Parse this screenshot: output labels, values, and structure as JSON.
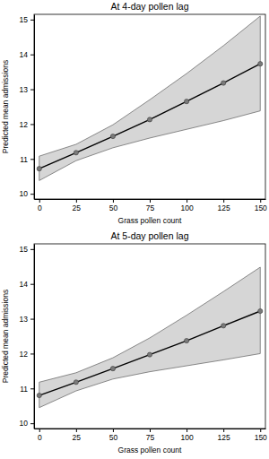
{
  "chart_data": [
    {
      "type": "line",
      "title": "At 4-day pollen lag",
      "x_label": "Grass pollen count",
      "y_label": "Predicted mean admissions",
      "x": [
        0,
        25,
        50,
        75,
        100,
        125,
        150
      ],
      "series": [
        {
          "values": [
            10.72,
            11.18,
            11.65,
            12.13,
            12.65,
            13.18,
            13.73
          ],
          "lower": [
            10.38,
            10.95,
            11.32,
            11.6,
            11.85,
            12.1,
            12.38
          ],
          "upper": [
            11.08,
            11.42,
            11.98,
            12.7,
            13.45,
            14.25,
            15.1
          ],
          "color": "#000000",
          "marker": "circle"
        }
      ],
      "xlim": [
        -3.5,
        153.5
      ],
      "xticks": [
        0,
        25,
        50,
        75,
        100,
        125,
        150
      ],
      "ylim": [
        9.85,
        15.15
      ],
      "yticks": [
        10,
        11,
        12,
        13,
        14,
        15
      ],
      "grid": false
    },
    {
      "type": "line",
      "title": "At 5-day pollen lag",
      "x_label": "Grass pollen count",
      "y_label": "Predicted mean admissions",
      "x": [
        0,
        25,
        50,
        75,
        100,
        125,
        150
      ],
      "series": [
        {
          "values": [
            10.8,
            11.18,
            11.57,
            11.97,
            12.37,
            12.8,
            13.22
          ],
          "lower": [
            10.45,
            10.93,
            11.27,
            11.48,
            11.65,
            11.82,
            12.0
          ],
          "upper": [
            11.18,
            11.45,
            11.88,
            12.45,
            13.1,
            13.78,
            14.48
          ],
          "color": "#000000",
          "marker": "circle"
        }
      ],
      "xlim": [
        -3.5,
        153.5
      ],
      "xticks": [
        0,
        25,
        50,
        75,
        100,
        125,
        150
      ],
      "ylim": [
        9.85,
        15.15
      ],
      "yticks": [
        10,
        11,
        12,
        13,
        14,
        15
      ],
      "grid": false
    }
  ]
}
